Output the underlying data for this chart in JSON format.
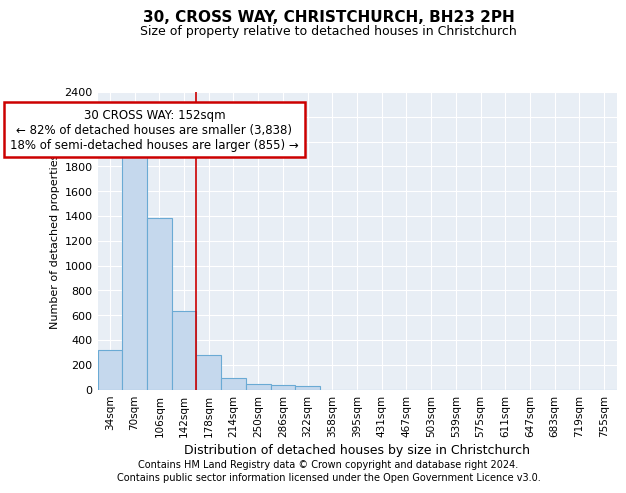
{
  "title1": "30, CROSS WAY, CHRISTCHURCH, BH23 2PH",
  "title2": "Size of property relative to detached houses in Christchurch",
  "xlabel": "Distribution of detached houses by size in Christchurch",
  "ylabel": "Number of detached properties",
  "categories": [
    "34sqm",
    "70sqm",
    "106sqm",
    "142sqm",
    "178sqm",
    "214sqm",
    "250sqm",
    "286sqm",
    "322sqm",
    "358sqm",
    "395sqm",
    "431sqm",
    "467sqm",
    "503sqm",
    "539sqm",
    "575sqm",
    "611sqm",
    "647sqm",
    "683sqm",
    "719sqm",
    "755sqm"
  ],
  "values": [
    320,
    1950,
    1380,
    630,
    280,
    95,
    45,
    35,
    25,
    0,
    0,
    0,
    0,
    0,
    0,
    0,
    0,
    0,
    0,
    0,
    0
  ],
  "bar_color": "#c5d8ed",
  "bar_edge_color": "#6aaad4",
  "vline_x": 3.5,
  "vline_color": "#cc0000",
  "annotation_text": "30 CROSS WAY: 152sqm\n← 82% of detached houses are smaller (3,838)\n18% of semi-detached houses are larger (855) →",
  "annotation_box_color": "white",
  "annotation_box_edge": "#cc0000",
  "ylim": [
    0,
    2400
  ],
  "yticks": [
    0,
    200,
    400,
    600,
    800,
    1000,
    1200,
    1400,
    1600,
    1800,
    2000,
    2200,
    2400
  ],
  "footer1": "Contains HM Land Registry data © Crown copyright and database right 2024.",
  "footer2": "Contains public sector information licensed under the Open Government Licence v3.0.",
  "bg_color": "#ffffff",
  "plot_bg_color": "#e8eef5",
  "grid_color": "#ffffff",
  "title1_fontsize": 11,
  "title2_fontsize": 9,
  "annotation_fontsize": 8.5,
  "ylabel_fontsize": 8,
  "xlabel_fontsize": 9,
  "tick_fontsize": 8,
  "xtick_fontsize": 7.5,
  "footer_fontsize": 7
}
